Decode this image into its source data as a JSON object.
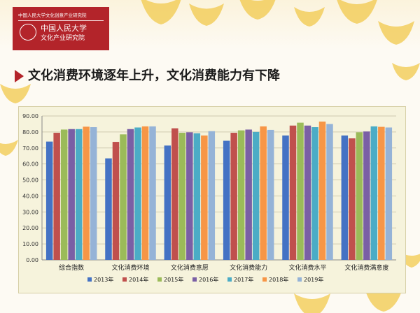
{
  "logo": {
    "line1": "中国人民大学文化创意产业研究院",
    "line2": "中国人民大学",
    "line3": "文化产业研究院"
  },
  "slide": {
    "title": "文化消费环境逐年上升，文化消费能力有下降"
  },
  "colors": {
    "accent": "#b3242a",
    "panel": "#f6f3dc",
    "grid": "#cfcab0"
  },
  "icons": {
    "title_marker": "triangle-marker-icon",
    "leaves": "ginkgo-leaf-icon"
  },
  "chart_data": {
    "type": "bar",
    "title": "",
    "xlabel": "",
    "ylabel": "",
    "ylim": [
      0,
      90
    ],
    "yticks": [
      "0.00",
      "10.00",
      "20.00",
      "30.00",
      "40.00",
      "50.00",
      "60.00",
      "70.00",
      "80.00",
      "90.00"
    ],
    "grid": true,
    "legend_position": "bottom",
    "categories": [
      "综合指数",
      "文化消费环境",
      "文化消费意愿",
      "文化消费能力",
      "文化消费水平",
      "文化消费满意度"
    ],
    "series": [
      {
        "name": "2013年",
        "color": "#4472c4",
        "values": [
          74.0,
          63.5,
          71.5,
          74.5,
          77.8,
          77.8
        ]
      },
      {
        "name": "2014年",
        "color": "#c0504d",
        "values": [
          79.5,
          73.8,
          82.3,
          79.5,
          84.0,
          76.0
        ]
      },
      {
        "name": "2015年",
        "color": "#9bbb59",
        "values": [
          81.5,
          78.5,
          79.5,
          81.0,
          85.8,
          79.8
        ]
      },
      {
        "name": "2016年",
        "color": "#7a5fa5",
        "values": [
          81.8,
          81.8,
          79.8,
          81.5,
          84.0,
          80.3
        ]
      },
      {
        "name": "2017年",
        "color": "#4bacc6",
        "values": [
          81.8,
          82.8,
          79.2,
          80.0,
          83.0,
          83.5
        ]
      },
      {
        "name": "2018年",
        "color": "#f79646",
        "values": [
          83.3,
          83.5,
          77.8,
          83.5,
          86.5,
          83.2
        ]
      },
      {
        "name": "2019年",
        "color": "#95b3d7",
        "values": [
          83.0,
          83.5,
          80.5,
          81.3,
          85.0,
          82.8
        ]
      }
    ]
  }
}
